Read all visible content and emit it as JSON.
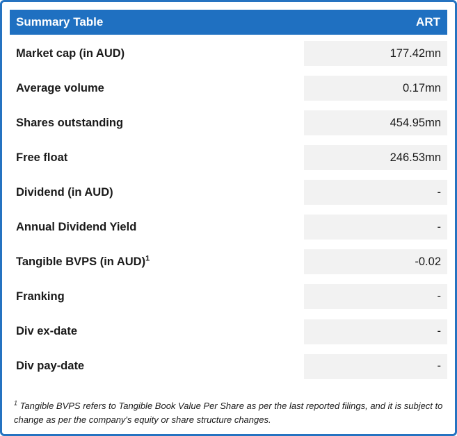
{
  "table": {
    "header": {
      "title": "Summary Table",
      "ticker": "ART"
    },
    "rows": [
      {
        "label": "Market cap (in AUD)",
        "sup": "",
        "value": "177.42mn"
      },
      {
        "label": "Average volume",
        "sup": "",
        "value": "0.17mn"
      },
      {
        "label": "Shares outstanding",
        "sup": "",
        "value": "454.95mn"
      },
      {
        "label": "Free float",
        "sup": "",
        "value": "246.53mn"
      },
      {
        "label": "Dividend (in AUD)",
        "sup": "",
        "value": "-"
      },
      {
        "label": "Annual Dividend Yield",
        "sup": "",
        "value": "-"
      },
      {
        "label": "Tangible BVPS (in AUD)",
        "sup": "1",
        "value": "-0.02"
      },
      {
        "label": "Franking",
        "sup": "",
        "value": "-"
      },
      {
        "label": "Div ex-date",
        "sup": "",
        "value": "-"
      },
      {
        "label": "Div pay-date",
        "sup": "",
        "value": "-"
      }
    ],
    "footnote": {
      "sup": "1",
      "text": " Tangible BVPS refers to Tangible Book Value Per Share as per the last reported filings, and it is subject to change as per the company's equity or share structure changes."
    }
  },
  "colors": {
    "header_bg": "#1F70C1",
    "border": "#2573C1",
    "value_cell_bg": "#F2F2F2",
    "text": "#1a1a1a"
  }
}
